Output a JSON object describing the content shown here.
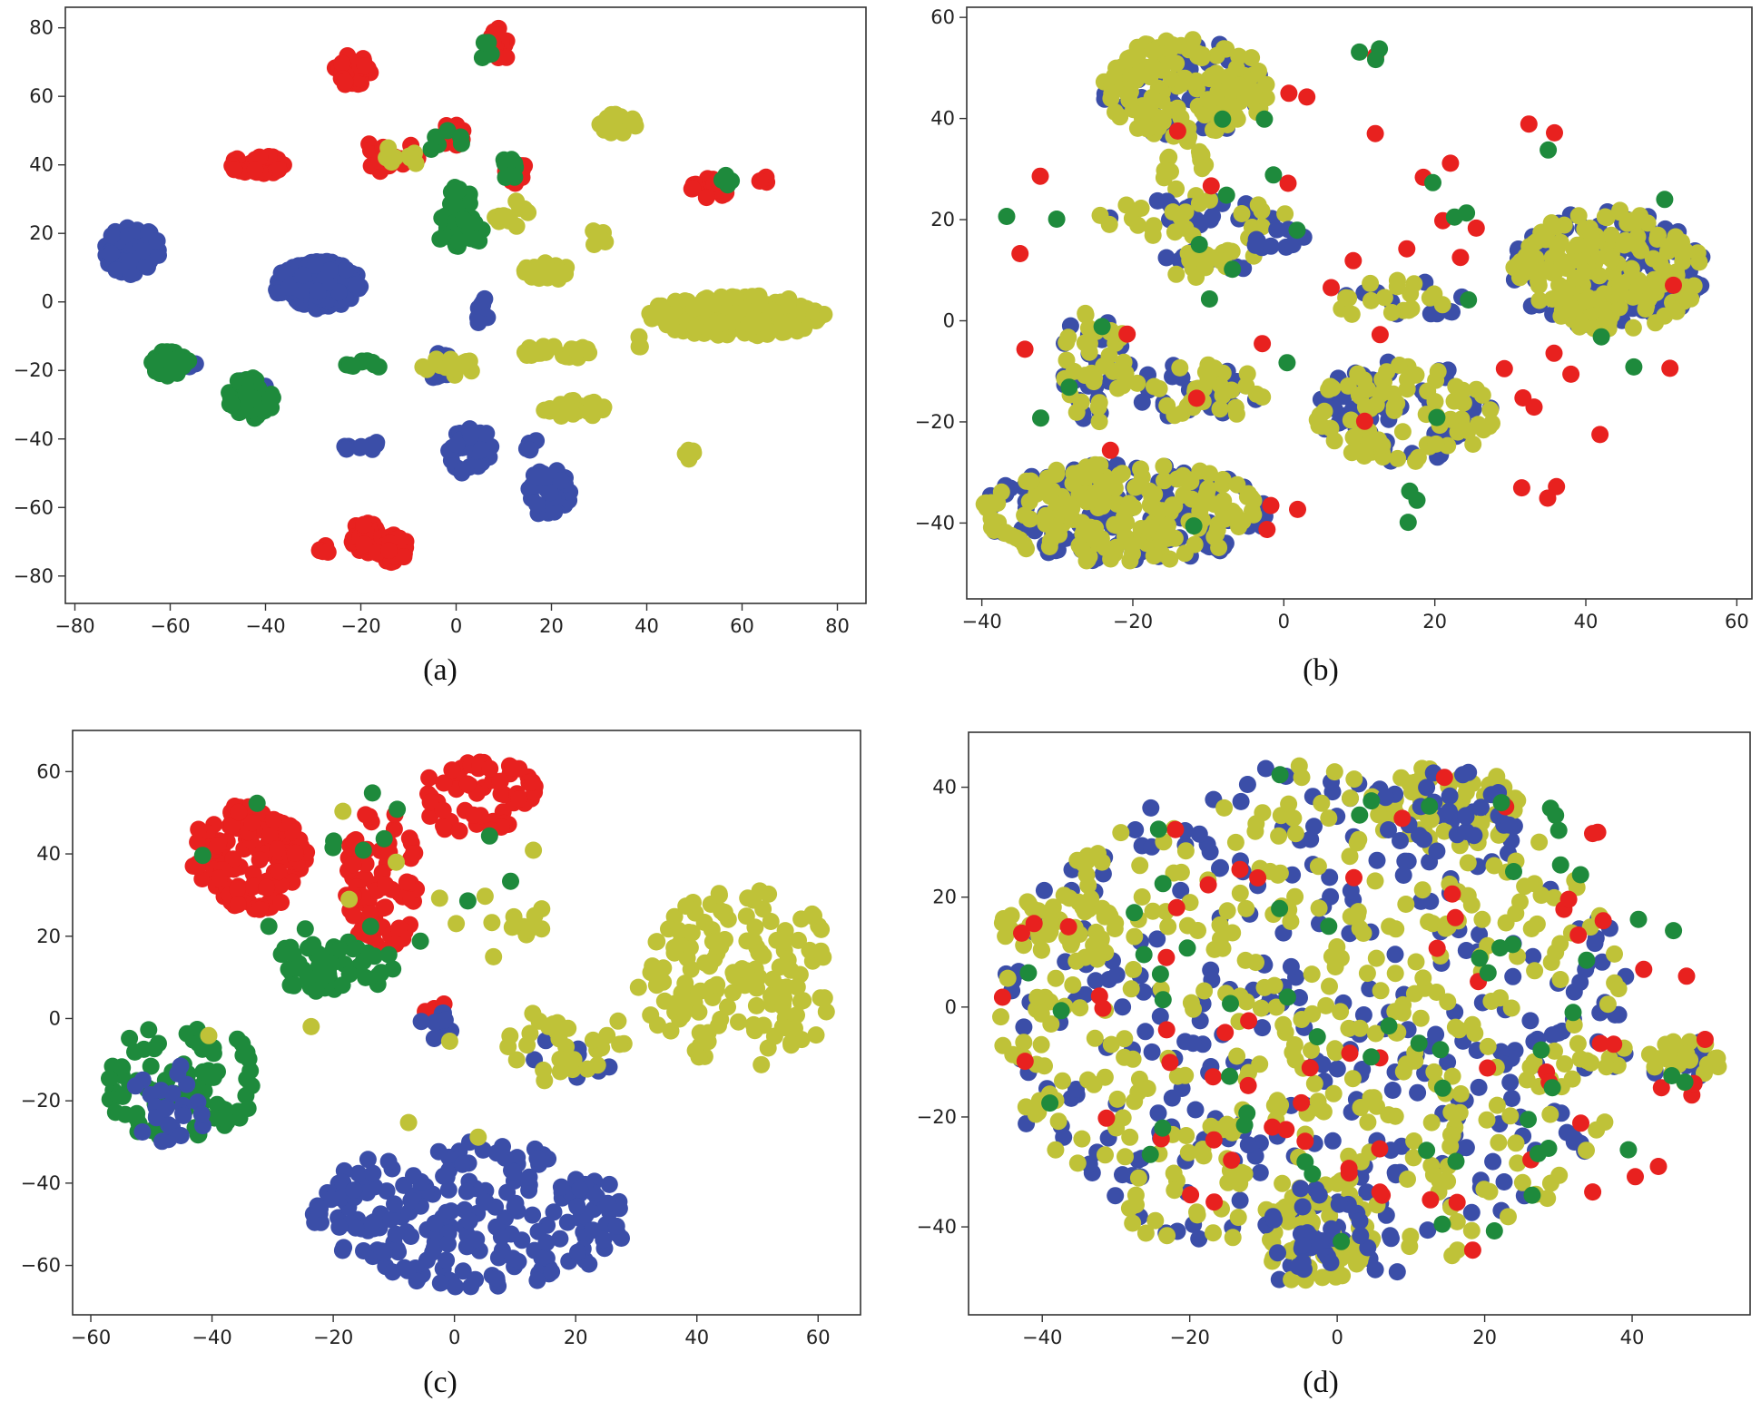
{
  "figure": {
    "colors": {
      "red": "#e8211f",
      "green": "#1e8a3c",
      "blue": "#3b4ea8",
      "yellow": "#bfc238"
    }
  },
  "chart_data": [
    {
      "id": "a",
      "caption": "(a)",
      "type": "scatter",
      "xlim": [
        -82,
        86
      ],
      "ylim": [
        -88,
        86
      ],
      "xticks": [
        -80,
        -60,
        -40,
        -20,
        0,
        20,
        40,
        60,
        80
      ],
      "yticks": [
        -80,
        -60,
        -40,
        -20,
        0,
        20,
        40,
        60,
        80
      ],
      "tick_labels_x": [
        "−80",
        "−60",
        "−40",
        "−20",
        "0",
        "20",
        "40",
        "60",
        "80"
      ],
      "tick_labels_y": [
        "−80",
        "−60",
        "−40",
        "−20",
        "0",
        "20",
        "40",
        "60",
        "80"
      ],
      "clusters": [
        {
          "color": "red",
          "x": [
            -26,
            -18
          ],
          "y": [
            63,
            72
          ],
          "n": 40
        },
        {
          "color": "red",
          "x": [
            7,
            12
          ],
          "y": [
            70,
            80
          ],
          "n": 18
        },
        {
          "color": "green",
          "x": [
            4,
            8
          ],
          "y": [
            70,
            76
          ],
          "n": 5
        },
        {
          "color": "red",
          "x": [
            -48,
            -36
          ],
          "y": [
            37,
            43
          ],
          "n": 40
        },
        {
          "color": "red",
          "x": [
            -4,
            2
          ],
          "y": [
            45,
            52
          ],
          "n": 18
        },
        {
          "color": "red",
          "x": [
            -20,
            -8
          ],
          "y": [
            37,
            48
          ],
          "n": 20
        },
        {
          "color": "yellow",
          "x": [
            -18,
            -8
          ],
          "y": [
            38,
            46
          ],
          "n": 8
        },
        {
          "color": "green",
          "x": [
            -6,
            2
          ],
          "y": [
            43,
            50
          ],
          "n": 6
        },
        {
          "color": "red",
          "x": [
            10,
            15
          ],
          "y": [
            33,
            42
          ],
          "n": 15
        },
        {
          "color": "red",
          "x": [
            49,
            57
          ],
          "y": [
            30,
            36
          ],
          "n": 25
        },
        {
          "color": "red",
          "x": [
            63,
            66
          ],
          "y": [
            34,
            37
          ],
          "n": 4
        },
        {
          "color": "green",
          "x": [
            55,
            58
          ],
          "y": [
            34,
            37
          ],
          "n": 4
        },
        {
          "color": "red",
          "x": [
            -22,
            -16
          ],
          "y": [
            -74,
            -64
          ],
          "n": 35
        },
        {
          "color": "red",
          "x": [
            -17,
            -10
          ],
          "y": [
            -76,
            -68
          ],
          "n": 30
        },
        {
          "color": "red",
          "x": [
            -30,
            -26
          ],
          "y": [
            -74,
            -71
          ],
          "n": 5
        },
        {
          "color": "blue",
          "x": [
            -74,
            -62
          ],
          "y": [
            8,
            22
          ],
          "n": 70
        },
        {
          "color": "blue",
          "x": [
            -38,
            -20
          ],
          "y": [
            -2,
            12
          ],
          "n": 200
        },
        {
          "color": "blue",
          "x": [
            4,
            7
          ],
          "y": [
            -8,
            2
          ],
          "n": 10
        },
        {
          "color": "blue",
          "x": [
            -2,
            8
          ],
          "y": [
            -52,
            -36
          ],
          "n": 40
        },
        {
          "color": "blue",
          "x": [
            15,
            24
          ],
          "y": [
            -64,
            -48
          ],
          "n": 40
        },
        {
          "color": "blue",
          "x": [
            -24,
            -16
          ],
          "y": [
            -44,
            -40
          ],
          "n": 10
        },
        {
          "color": "blue",
          "x": [
            -6,
            0
          ],
          "y": [
            -24,
            -14
          ],
          "n": 20
        },
        {
          "color": "blue",
          "x": [
            -64,
            -54
          ],
          "y": [
            -20,
            -16
          ],
          "n": 12
        },
        {
          "color": "blue",
          "x": [
            -46,
            -40
          ],
          "y": [
            -28,
            -22
          ],
          "n": 10
        },
        {
          "color": "blue",
          "x": [
            14,
            18
          ],
          "y": [
            -44,
            -40
          ],
          "n": 5
        },
        {
          "color": "green",
          "x": [
            -3,
            4
          ],
          "y": [
            16,
            34
          ],
          "n": 40
        },
        {
          "color": "green",
          "x": [
            -4,
            6
          ],
          "y": [
            16,
            24
          ],
          "n": 20
        },
        {
          "color": "green",
          "x": [
            -64,
            -56
          ],
          "y": [
            -22,
            -14
          ],
          "n": 30
        },
        {
          "color": "green",
          "x": [
            -48,
            -38
          ],
          "y": [
            -34,
            -22
          ],
          "n": 50
        },
        {
          "color": "green",
          "x": [
            -24,
            -14
          ],
          "y": [
            -20,
            -16
          ],
          "n": 10
        },
        {
          "color": "green",
          "x": [
            8,
            14
          ],
          "y": [
            35,
            42
          ],
          "n": 10
        },
        {
          "color": "yellow",
          "x": [
            30,
            38
          ],
          "y": [
            49,
            55
          ],
          "n": 25
        },
        {
          "color": "yellow",
          "x": [
            40,
            78
          ],
          "y": [
            -10,
            2
          ],
          "n": 200
        },
        {
          "color": "yellow",
          "x": [
            14,
            24
          ],
          "y": [
            6,
            12
          ],
          "n": 20
        },
        {
          "color": "yellow",
          "x": [
            14,
            28
          ],
          "y": [
            -17,
            -12
          ],
          "n": 25
        },
        {
          "color": "yellow",
          "x": [
            18,
            31
          ],
          "y": [
            -34,
            -28
          ],
          "n": 25
        },
        {
          "color": "yellow",
          "x": [
            8,
            16
          ],
          "y": [
            20,
            30
          ],
          "n": 12
        },
        {
          "color": "yellow",
          "x": [
            28,
            32
          ],
          "y": [
            16,
            24
          ],
          "n": 5
        },
        {
          "color": "yellow",
          "x": [
            47,
            51
          ],
          "y": [
            -46,
            -43
          ],
          "n": 5
        },
        {
          "color": "yellow",
          "x": [
            36,
            40
          ],
          "y": [
            -14,
            -10
          ],
          "n": 3
        },
        {
          "color": "yellow",
          "x": [
            -8,
            4
          ],
          "y": [
            -22,
            -16
          ],
          "n": 12
        }
      ]
    },
    {
      "id": "b",
      "caption": "(b)",
      "type": "scatter",
      "xlim": [
        -42,
        62
      ],
      "ylim": [
        -55,
        62
      ],
      "xticks": [
        -40,
        -20,
        0,
        20,
        40,
        60
      ],
      "yticks": [
        -40,
        -20,
        0,
        20,
        40,
        60
      ],
      "tick_labels_x": [
        "−40",
        "−20",
        "0",
        "20",
        "40",
        "60"
      ],
      "tick_labels_y": [
        "−40",
        "−20",
        "0",
        "20",
        "40",
        "60"
      ],
      "clusters": [
        {
          "color": "blue",
          "x": [
            -24,
            -2
          ],
          "y": [
            36,
            56
          ],
          "n": 70
        },
        {
          "color": "yellow",
          "x": [
            -24,
            -2
          ],
          "y": [
            36,
            56
          ],
          "n": 130
        },
        {
          "color": "yellow",
          "x": [
            -16,
            -10
          ],
          "y": [
            24,
            36
          ],
          "n": 15
        },
        {
          "color": "blue",
          "x": [
            -26,
            0
          ],
          "y": [
            18,
            24
          ],
          "n": 20
        },
        {
          "color": "yellow",
          "x": [
            -26,
            4
          ],
          "y": [
            16,
            24
          ],
          "n": 25
        },
        {
          "color": "blue",
          "x": [
            -16,
            -2
          ],
          "y": [
            10,
            14
          ],
          "n": 15
        },
        {
          "color": "yellow",
          "x": [
            -16,
            -2
          ],
          "y": [
            8,
            14
          ],
          "n": 18
        },
        {
          "color": "blue",
          "x": [
            -6,
            4
          ],
          "y": [
            14,
            20
          ],
          "n": 10
        },
        {
          "color": "blue",
          "x": [
            30,
            56
          ],
          "y": [
            -2,
            22
          ],
          "n": 110
        },
        {
          "color": "yellow",
          "x": [
            30,
            56
          ],
          "y": [
            -2,
            22
          ],
          "n": 170
        },
        {
          "color": "blue",
          "x": [
            6,
            24
          ],
          "y": [
            0,
            8
          ],
          "n": 12
        },
        {
          "color": "yellow",
          "x": [
            6,
            24
          ],
          "y": [
            0,
            8
          ],
          "n": 18
        },
        {
          "color": "blue",
          "x": [
            4,
            28
          ],
          "y": [
            -28,
            -8
          ],
          "n": 60
        },
        {
          "color": "yellow",
          "x": [
            4,
            28
          ],
          "y": [
            -28,
            -8
          ],
          "n": 80
        },
        {
          "color": "blue",
          "x": [
            -30,
            -20
          ],
          "y": [
            -20,
            2
          ],
          "n": 25
        },
        {
          "color": "yellow",
          "x": [
            -30,
            -20
          ],
          "y": [
            -20,
            2
          ],
          "n": 35
        },
        {
          "color": "blue",
          "x": [
            -20,
            -2
          ],
          "y": [
            -20,
            -8
          ],
          "n": 25
        },
        {
          "color": "yellow",
          "x": [
            -20,
            -2
          ],
          "y": [
            -20,
            -6
          ],
          "n": 30
        },
        {
          "color": "blue",
          "x": [
            -40,
            -2
          ],
          "y": [
            -48,
            -28
          ],
          "n": 130
        },
        {
          "color": "yellow",
          "x": [
            -40,
            -2
          ],
          "y": [
            -48,
            -28
          ],
          "n": 180
        },
        {
          "color": "red",
          "x": [
            -40,
            56
          ],
          "y": [
            -48,
            56
          ],
          "n": 40
        },
        {
          "color": "green",
          "x": [
            -40,
            56
          ],
          "y": [
            -48,
            56
          ],
          "n": 30
        }
      ]
    },
    {
      "id": "c",
      "caption": "(c)",
      "type": "scatter",
      "xlim": [
        -63,
        67
      ],
      "ylim": [
        -72,
        70
      ],
      "xticks": [
        -60,
        -40,
        -20,
        0,
        20,
        40,
        60
      ],
      "yticks": [
        -60,
        -40,
        -20,
        0,
        20,
        40,
        60
      ],
      "tick_labels_x": [
        "−60",
        "−40",
        "−20",
        "0",
        "20",
        "40",
        "60"
      ],
      "tick_labels_y": [
        "−60",
        "−40",
        "−20",
        "0",
        "20",
        "40",
        "60"
      ],
      "clusters": [
        {
          "color": "red",
          "x": [
            -44,
            -24
          ],
          "y": [
            26,
            52
          ],
          "n": 130
        },
        {
          "color": "red",
          "x": [
            -18,
            -6
          ],
          "y": [
            16,
            52
          ],
          "n": 70
        },
        {
          "color": "red",
          "x": [
            -6,
            14
          ],
          "y": [
            44,
            64
          ],
          "n": 60
        },
        {
          "color": "red",
          "x": [
            -6,
            0
          ],
          "y": [
            0,
            6
          ],
          "n": 8
        },
        {
          "color": "green",
          "x": [
            -30,
            -10
          ],
          "y": [
            6,
            20
          ],
          "n": 50
        },
        {
          "color": "green",
          "x": [
            -58,
            -32
          ],
          "y": [
            -30,
            0
          ],
          "n": 90
        },
        {
          "color": "green",
          "x": [
            -44,
            12
          ],
          "y": [
            12,
            60
          ],
          "n": 15
        },
        {
          "color": "blue",
          "x": [
            -54,
            -40
          ],
          "y": [
            -30,
            -10
          ],
          "n": 25
        },
        {
          "color": "blue",
          "x": [
            -6,
            0
          ],
          "y": [
            -6,
            2
          ],
          "n": 10
        },
        {
          "color": "blue",
          "x": [
            -24,
            30
          ],
          "y": [
            -66,
            -30
          ],
          "n": 220
        },
        {
          "color": "blue",
          "x": [
            12,
            28
          ],
          "y": [
            -16,
            -4
          ],
          "n": 10
        },
        {
          "color": "yellow",
          "x": [
            8,
            30
          ],
          "y": [
            -16,
            4
          ],
          "n": 30
        },
        {
          "color": "yellow",
          "x": [
            8,
            16
          ],
          "y": [
            20,
            28
          ],
          "n": 10
        },
        {
          "color": "yellow",
          "x": [
            30,
            64
          ],
          "y": [
            -12,
            32
          ],
          "n": 150
        },
        {
          "color": "yellow",
          "x": [
            -44,
            26
          ],
          "y": [
            -60,
            60
          ],
          "n": 14
        }
      ]
    },
    {
      "id": "d",
      "caption": "(d)",
      "type": "scatter",
      "xlim": [
        -50,
        56
      ],
      "ylim": [
        -56,
        50
      ],
      "xticks": [
        -40,
        -20,
        0,
        20,
        40
      ],
      "yticks": [
        -40,
        -20,
        0,
        20,
        40
      ],
      "tick_labels_x": [
        "−40",
        "−20",
        "0",
        "20",
        "40"
      ],
      "tick_labels_y": [
        "−40",
        "−20",
        "0",
        "20",
        "40"
      ],
      "clusters": [
        {
          "color": "blue",
          "x": [
            -46,
            40
          ],
          "y": [
            -50,
            44
          ],
          "n": 330
        },
        {
          "color": "yellow",
          "x": [
            -46,
            40
          ],
          "y": [
            -50,
            44
          ],
          "n": 420
        },
        {
          "color": "yellow",
          "x": [
            5,
            25
          ],
          "y": [
            28,
            44
          ],
          "n": 50
        },
        {
          "color": "blue",
          "x": [
            5,
            25
          ],
          "y": [
            28,
            44
          ],
          "n": 30
        },
        {
          "color": "yellow",
          "x": [
            -10,
            5
          ],
          "y": [
            -50,
            -32
          ],
          "n": 50
        },
        {
          "color": "blue",
          "x": [
            -10,
            5
          ],
          "y": [
            -50,
            -32
          ],
          "n": 30
        },
        {
          "color": "yellow",
          "x": [
            -46,
            -30
          ],
          "y": [
            10,
            20
          ],
          "n": 40
        },
        {
          "color": "blue",
          "x": [
            42,
            52
          ],
          "y": [
            -14,
            -6
          ],
          "n": 15
        },
        {
          "color": "yellow",
          "x": [
            42,
            52
          ],
          "y": [
            -14,
            -6
          ],
          "n": 20
        },
        {
          "color": "red",
          "x": [
            -46,
            52
          ],
          "y": [
            -50,
            44
          ],
          "n": 70
        },
        {
          "color": "green",
          "x": [
            -46,
            52
          ],
          "y": [
            -50,
            44
          ],
          "n": 60
        }
      ]
    }
  ]
}
